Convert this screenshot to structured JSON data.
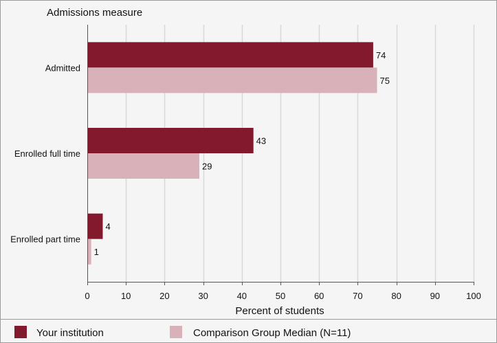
{
  "chart_data": {
    "type": "bar",
    "orientation": "horizontal",
    "title": "Admissions measure",
    "xlabel": "Percent of students",
    "xlim": [
      0,
      100
    ],
    "xticks": [
      0,
      10,
      20,
      30,
      40,
      50,
      60,
      70,
      80,
      90,
      100
    ],
    "grid": true,
    "legend_position": "bottom",
    "categories": [
      "Admitted",
      "Enrolled full time",
      "Enrolled part time"
    ],
    "series": [
      {
        "name": "Your institution",
        "values": [
          74,
          43,
          4
        ],
        "color": "#83192d"
      },
      {
        "name": "Comparison Group Median (N=11)",
        "values": [
          75,
          29,
          1
        ],
        "color": "#d9b1b8"
      }
    ],
    "colors": {
      "background": "#f5f5f5",
      "grid": "#d8d8d8",
      "frame": "#9a9a9a"
    }
  }
}
